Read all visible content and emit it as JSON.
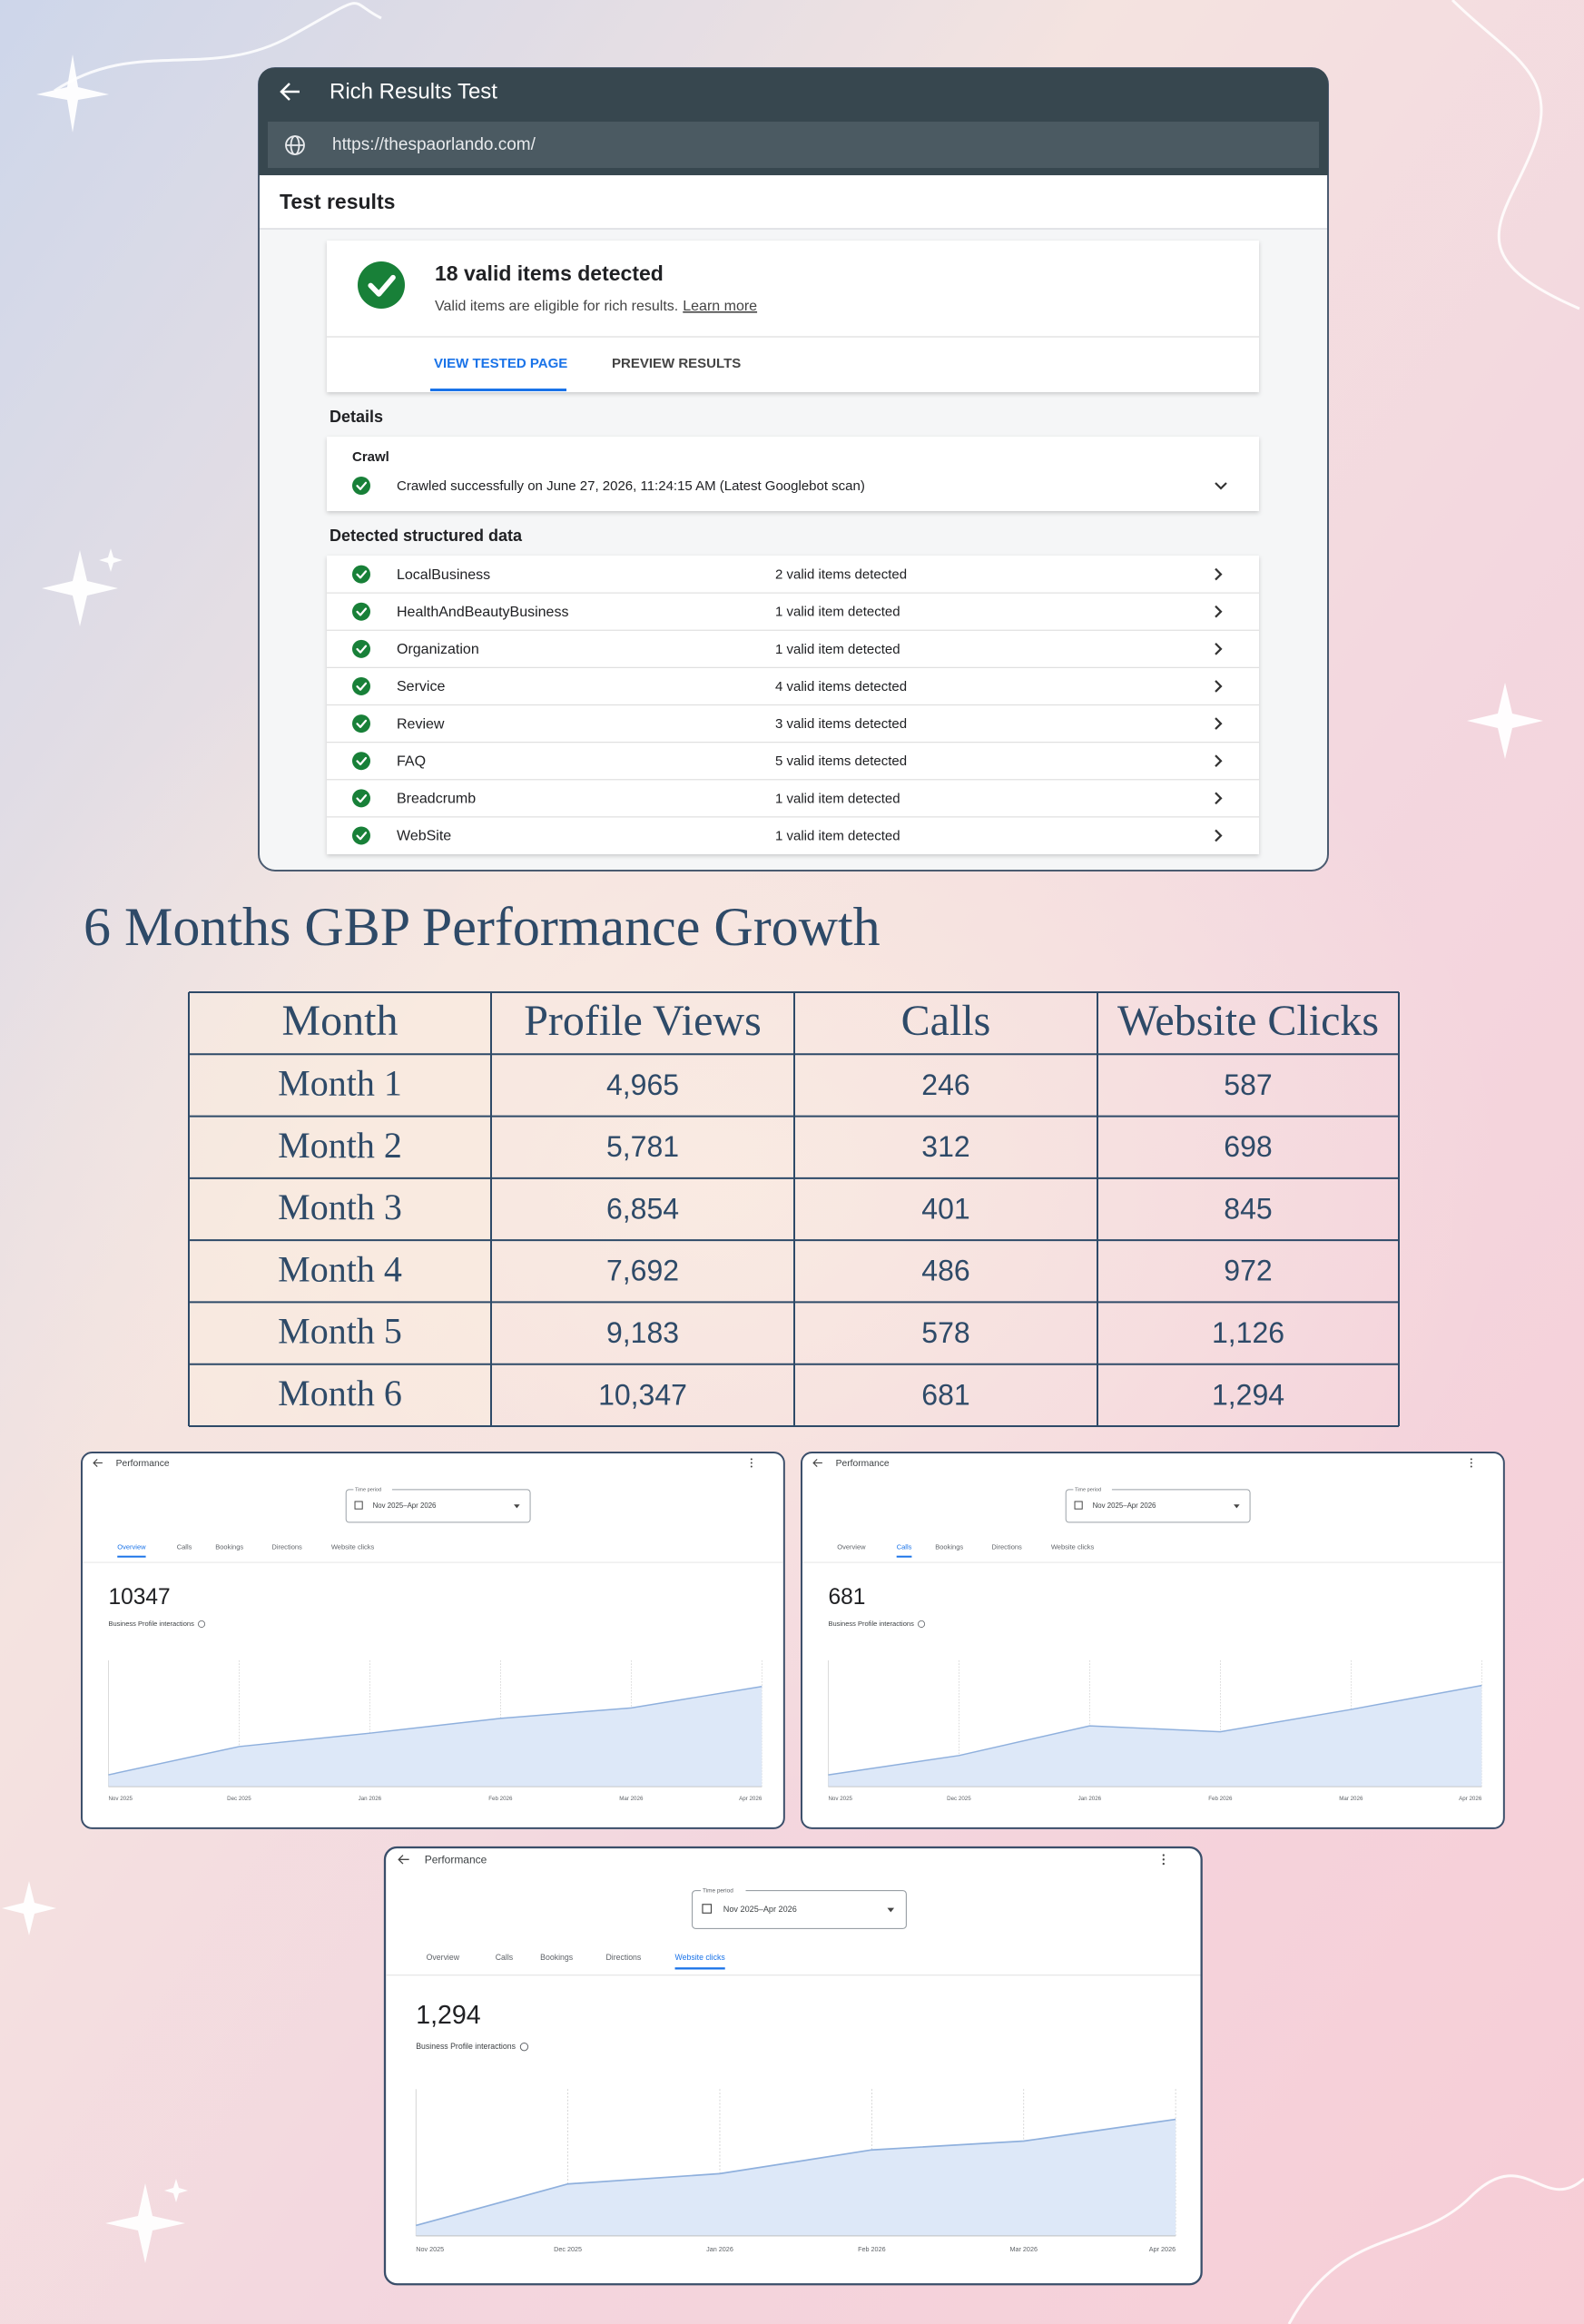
{
  "rich_results": {
    "title": "Rich Results Test",
    "url": "https://thespaorlando.com/",
    "section_title": "Test results",
    "summary": {
      "headline": "18 valid items detected",
      "description": "Valid items are eligible for rich results.",
      "link": "Learn more"
    },
    "tabs": [
      "VIEW TESTED PAGE",
      "PREVIEW RESULTS"
    ],
    "details_label": "Details",
    "crawl": {
      "label": "Crawl",
      "status": "Crawled successfully on June 27, 2026, 11:24:15 AM (Latest Googlebot scan)"
    },
    "structured_data_label": "Detected structured data",
    "structured_data": [
      {
        "name": "LocalBusiness",
        "status": "2 valid items detected"
      },
      {
        "name": "HealthAndBeautyBusiness",
        "status": "1 valid item detected"
      },
      {
        "name": "Organization",
        "status": "1 valid item detected"
      },
      {
        "name": "Service",
        "status": "4 valid items detected"
      },
      {
        "name": "Review",
        "status": "3 valid items detected"
      },
      {
        "name": "FAQ",
        "status": "5 valid items detected"
      },
      {
        "name": "Breadcrumb",
        "status": "1 valid item detected"
      },
      {
        "name": "WebSite",
        "status": "1 valid item detected"
      }
    ]
  },
  "heading": "6 Months GBP Performance Growth",
  "table": {
    "columns": [
      "Month",
      "Profile Views",
      "Calls",
      "Website Clicks"
    ],
    "rows": [
      [
        "Month 1",
        "4,965",
        "246",
        "587"
      ],
      [
        "Month 2",
        "5,781",
        "312",
        "698"
      ],
      [
        "Month 3",
        "6,854",
        "401",
        "845"
      ],
      [
        "Month 4",
        "7,692",
        "486",
        "972"
      ],
      [
        "Month 5",
        "9,183",
        "578",
        "1,126"
      ],
      [
        "Month 6",
        "10,347",
        "681",
        "1,294"
      ]
    ]
  },
  "performance_panels": [
    {
      "title": "Performance",
      "time_period_label": "Time period",
      "time_period": "Nov 2025–Apr 2026",
      "tabs": [
        "Overview",
        "Calls",
        "Bookings",
        "Directions",
        "Website clicks"
      ],
      "active_tab": 0,
      "total": "10347",
      "metric_label": "Business Profile interactions",
      "chart": {
        "type": "area",
        "categories": [
          "Nov 2025",
          "Dec 2025",
          "Jan 2026",
          "Feb 2026",
          "Mar 2026",
          "Apr 2026"
        ],
        "values": [
          4750,
          6540,
          7390,
          8330,
          8990,
          10347
        ],
        "ylim": [
          4000,
          12000
        ],
        "color": "#8fb0dd"
      }
    },
    {
      "title": "Performance",
      "time_period_label": "Time period",
      "time_period": "Nov 2025–Apr 2026",
      "tabs": [
        "Overview",
        "Calls",
        "Bookings",
        "Directions",
        "Website clicks"
      ],
      "active_tab": 1,
      "total": "681",
      "metric_label": "Business Profile interactions",
      "chart": {
        "type": "area",
        "categories": [
          "Nov 2025",
          "Dec 2025",
          "Jan 2026",
          "Feb 2026",
          "Mar 2026",
          "Apr 2026"
        ],
        "values": [
          256,
          348,
          489,
          461,
          567,
          681
        ],
        "ylim": [
          200,
          800
        ],
        "color": "#8fb0dd"
      }
    },
    {
      "title": "Performance",
      "time_period_label": "Time period",
      "time_period": "Nov 2025–Apr 2026",
      "tabs": [
        "Overview",
        "Calls",
        "Bookings",
        "Directions",
        "Website clicks"
      ],
      "active_tab": 4,
      "total": "1,294",
      "metric_label": "Business Profile interactions",
      "chart": {
        "type": "area",
        "categories": [
          "Nov 2025",
          "Dec 2025",
          "Jan 2026",
          "Feb 2026",
          "Mar 2026",
          "Apr 2026"
        ],
        "values": [
          571,
          854,
          924,
          1086,
          1146,
          1294
        ],
        "ylim": [
          500,
          1500
        ],
        "color": "#8fb0dd"
      }
    }
  ]
}
